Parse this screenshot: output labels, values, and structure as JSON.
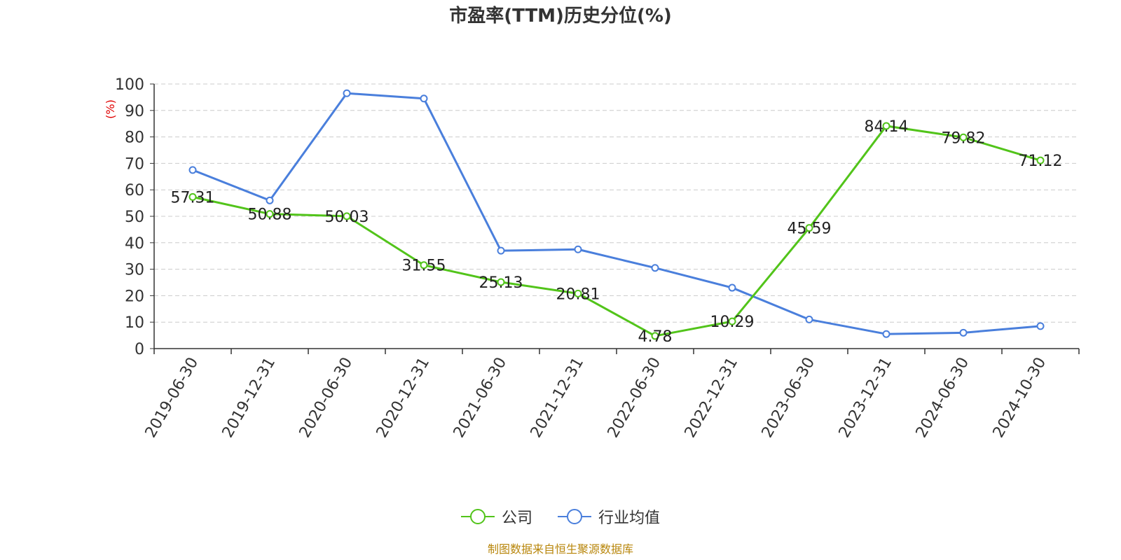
{
  "chart_data": {
    "type": "line",
    "title": "市盈率(TTM)历史分位(%)",
    "ylabel": "(%)",
    "ylim": [
      0,
      100
    ],
    "yticks": [
      0,
      10,
      20,
      30,
      40,
      50,
      60,
      70,
      80,
      90,
      100
    ],
    "categories": [
      "2019-06-30",
      "2019-12-31",
      "2020-06-30",
      "2020-12-31",
      "2021-06-30",
      "2021-12-31",
      "2022-06-30",
      "2022-12-31",
      "2023-06-30",
      "2023-12-31",
      "2024-06-30",
      "2024-10-30"
    ],
    "series": [
      {
        "name": "公司",
        "color": "#52c41a",
        "values": [
          57.31,
          50.88,
          50.03,
          31.55,
          25.13,
          20.81,
          4.78,
          10.29,
          45.59,
          84.14,
          79.82,
          71.12
        ],
        "labels": [
          "57.31",
          "50.88",
          "50.03",
          "31.55",
          "25.13",
          "20.81",
          "4.78",
          "10.29",
          "45.59",
          "84.14",
          "79.82",
          "71.12"
        ]
      },
      {
        "name": "行业均值",
        "color": "#4a7fdc",
        "values": [
          67.5,
          56.0,
          96.5,
          94.5,
          37.0,
          37.5,
          30.5,
          23.0,
          11.0,
          5.5,
          6.0,
          8.5
        ]
      }
    ],
    "grid": true,
    "legend_position": "bottom"
  },
  "source": "制图数据来自恒生聚源数据库"
}
